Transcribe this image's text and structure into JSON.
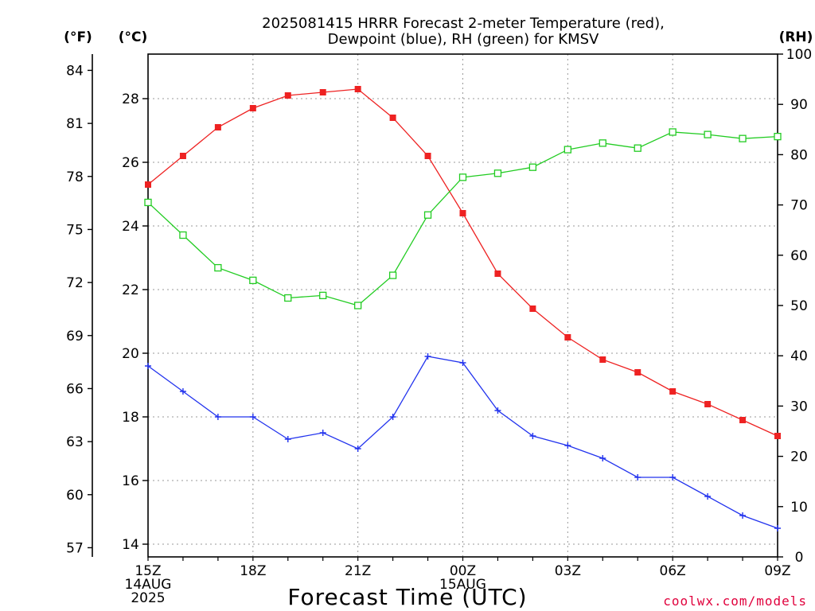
{
  "title_line1": "2025081415 HRRR Forecast 2-meter Temperature (red),",
  "title_line2": "Dewpoint (blue), RH (green) for KMSV",
  "units": {
    "fahrenheit": "(°F)",
    "celsius": "(°C)",
    "rh": "(RH)"
  },
  "credit": "coolwx.com/models",
  "chart_data": {
    "type": "line",
    "title": "2025081415 HRRR Forecast 2-meter Temperature (red), Dewpoint (blue), RH (green) for KMSV",
    "xlabel": "Forecast Time (UTC)",
    "x": [
      "15Z",
      "16Z",
      "17Z",
      "18Z",
      "19Z",
      "20Z",
      "21Z",
      "22Z",
      "23Z",
      "00Z",
      "01Z",
      "02Z",
      "03Z",
      "04Z",
      "05Z",
      "06Z",
      "07Z",
      "08Z",
      "09Z"
    ],
    "x_tick_labels": [
      {
        "x": "15Z",
        "lines": [
          "15Z",
          "14AUG",
          "2025"
        ]
      },
      {
        "x": "18Z",
        "lines": [
          "18Z"
        ]
      },
      {
        "x": "21Z",
        "lines": [
          "21Z"
        ]
      },
      {
        "x": "00Z",
        "lines": [
          "00Z",
          "15AUG"
        ]
      },
      {
        "x": "03Z",
        "lines": [
          "03Z"
        ]
      },
      {
        "x": "06Z",
        "lines": [
          "06Z"
        ]
      },
      {
        "x": "09Z",
        "lines": [
          "09Z"
        ]
      }
    ],
    "y_celsius": {
      "label": "(°C)",
      "range": [
        13.6,
        29.4
      ],
      "ticks": [
        14,
        16,
        18,
        20,
        22,
        24,
        26,
        28
      ]
    },
    "y_fahrenheit": {
      "label": "(°F)",
      "ticks": [
        57,
        60,
        63,
        66,
        69,
        72,
        75,
        78,
        81,
        84
      ]
    },
    "y_rh": {
      "label": "(RH)",
      "range": [
        0,
        100
      ],
      "ticks": [
        0,
        10,
        20,
        30,
        40,
        50,
        60,
        70,
        80,
        90,
        100
      ]
    },
    "grid": true,
    "series": [
      {
        "axis": "celsius",
        "color": "#ee2222",
        "marker": "filled-square",
        "values": [
          25.3,
          26.2,
          27.1,
          27.7,
          28.1,
          28.2,
          28.3,
          27.4,
          26.2,
          24.4,
          22.5,
          21.4,
          20.5,
          19.8,
          19.4,
          18.8,
          18.4,
          17.9,
          17.4
        ]
      },
      {
        "axis": "celsius",
        "color": "#2233ee",
        "marker": "plus",
        "values": [
          19.6,
          18.8,
          18.0,
          18.0,
          17.3,
          17.5,
          17.0,
          18.0,
          19.9,
          19.7,
          18.2,
          17.4,
          17.1,
          16.7,
          16.1,
          16.1,
          15.5,
          14.9,
          14.5
        ]
      },
      {
        "axis": "rh",
        "color": "#22cc22",
        "marker": "open-square",
        "values": [
          70.5,
          64.0,
          57.5,
          55.0,
          51.5,
          52.0,
          50.0,
          56.0,
          68.0,
          75.5,
          76.3,
          77.5,
          81.0,
          82.3,
          81.3,
          84.5,
          84.0,
          83.2,
          83.6
        ]
      }
    ]
  }
}
